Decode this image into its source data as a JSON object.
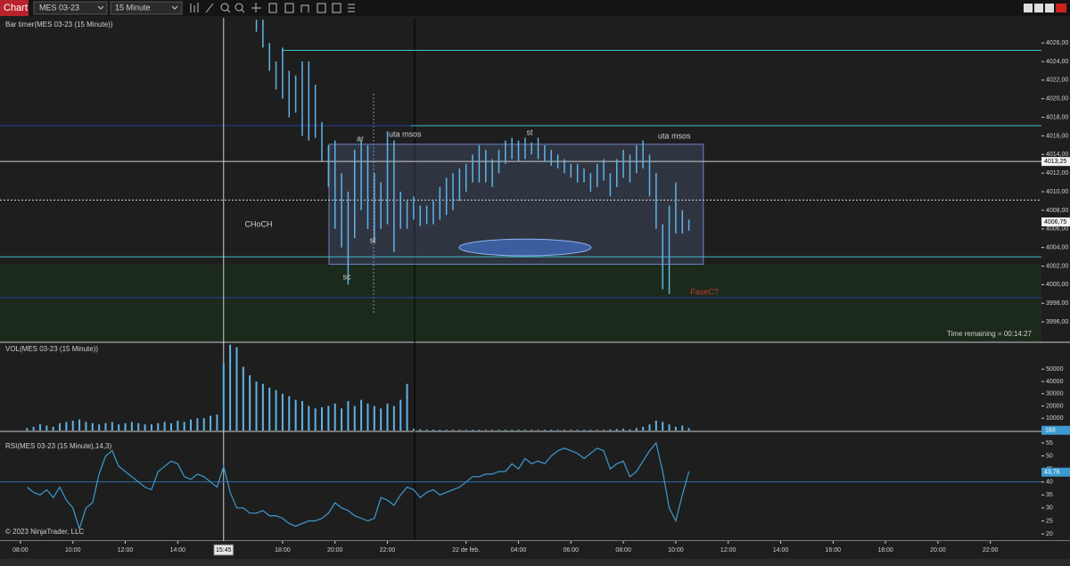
{
  "toolbar": {
    "tab": "Chart",
    "instrument": "MES 03-23",
    "interval": "15 Minute"
  },
  "copyright": "© 2023 NinjaTrader, LLC",
  "time_axis": {
    "xlim": [
      -0.78,
      38.95
    ],
    "ticks": [
      {
        "value": 0,
        "label": "08:00"
      },
      {
        "value": 2,
        "label": "10:00"
      },
      {
        "value": 4,
        "label": "12:00"
      },
      {
        "value": 6,
        "label": "14:00"
      },
      {
        "value": 10,
        "label": "18:00"
      },
      {
        "value": 12,
        "label": "20:00"
      },
      {
        "value": 14,
        "label": "22:00"
      },
      {
        "value": 17,
        "label": "22 de feb."
      },
      {
        "value": 19,
        "label": "04:00"
      },
      {
        "value": 21,
        "label": "06:00"
      },
      {
        "value": 23,
        "label": "08:00"
      },
      {
        "value": 25,
        "label": "10:00"
      },
      {
        "value": 27,
        "label": "12:00"
      },
      {
        "value": 29,
        "label": "14:00"
      },
      {
        "value": 31,
        "label": "16:00"
      },
      {
        "value": 33,
        "label": "18:00"
      },
      {
        "value": 35,
        "label": "20:00"
      },
      {
        "value": 37,
        "label": "22:00"
      }
    ],
    "crosshair": {
      "value": 7.75,
      "label": "15:45"
    },
    "bar_times": [
      0.25,
      0.5,
      0.75,
      1,
      1.25,
      1.5,
      1.75,
      2,
      2.25,
      2.5,
      2.75,
      3,
      3.25,
      3.5,
      3.75,
      4,
      4.25,
      4.5,
      4.75,
      5,
      5.25,
      5.5,
      5.75,
      6,
      6.25,
      6.5,
      6.75,
      7,
      7.25,
      7.5,
      7.75,
      8,
      8.25,
      8.5,
      8.75,
      9,
      9.25,
      9.5,
      9.75,
      10,
      10.25,
      10.5,
      10.75,
      11,
      11.25,
      11.5,
      11.75,
      12,
      12.25,
      12.5,
      12.75,
      13,
      13.25,
      13.5,
      13.75,
      14,
      14.25,
      14.5,
      14.75,
      15,
      15.25,
      15.5,
      15.75,
      16,
      16.25,
      16.5,
      16.75,
      17,
      17.25,
      17.5,
      17.75,
      18,
      18.25,
      18.5,
      18.75,
      19,
      19.25,
      19.5,
      19.75,
      20,
      20.25,
      20.5,
      20.75,
      21,
      21.25,
      21.5,
      21.75,
      22,
      22.25,
      22.5,
      22.75,
      23,
      23.25,
      23.5,
      23.75,
      24,
      24.25,
      24.5,
      24.75,
      25,
      25.25,
      25.5
    ]
  },
  "panels": {
    "price": {
      "title": "Bar timer(MES 03-23 (15 Minute))",
      "color": "#5fb3e6",
      "ylim": [
        3993.9,
        4028.7
      ],
      "yticks": [
        {
          "value": 4026,
          "label": "4026,00"
        },
        {
          "value": 4024,
          "label": "4024,00"
        },
        {
          "value": 4022,
          "label": "4022,00"
        },
        {
          "value": 4020,
          "label": "4020,00"
        },
        {
          "value": 4018,
          "label": "4018,00"
        },
        {
          "value": 4016,
          "label": "4016,00"
        },
        {
          "value": 4014,
          "label": "4014,00"
        },
        {
          "value": 4012,
          "label": "4012,00"
        },
        {
          "value": 4010,
          "label": "4010,00"
        },
        {
          "value": 4008,
          "label": "4008,00"
        },
        {
          "value": 4006,
          "label": "4006,00"
        },
        {
          "value": 4004,
          "label": "4004,00"
        },
        {
          "value": 4002,
          "label": "4002,00"
        },
        {
          "value": 4000,
          "label": "4000,00"
        },
        {
          "value": 3998,
          "label": "3998,00"
        },
        {
          "value": 3996,
          "label": "3996,00"
        }
      ],
      "time": [
        9,
        9.25,
        9.5,
        9.75,
        10,
        10.25,
        10.5,
        10.75,
        11,
        11.25,
        11.5,
        11.75,
        12,
        12.25,
        12.5,
        12.75,
        13,
        13.25,
        13.5,
        13.75,
        14,
        14.25,
        14.5,
        14.75,
        15,
        15.25,
        15.5,
        15.75,
        16,
        16.25,
        16.5,
        16.75,
        17,
        17.25,
        17.5,
        17.75,
        18,
        18.25,
        18.5,
        18.75,
        19,
        19.25,
        19.5,
        19.75,
        20,
        20.25,
        20.5,
        20.75,
        21,
        21.25,
        21.5,
        21.75,
        22,
        22.25,
        22.5,
        22.75,
        23,
        23.25,
        23.5,
        23.75,
        24,
        24.25,
        24.5,
        24.75,
        25,
        25.25,
        25.5
      ],
      "high": [
        4028.5,
        4028.5,
        4026,
        4024,
        4025.5,
        4023,
        4022.5,
        4024,
        4024,
        4021.5,
        4017.5,
        4015,
        4015.5,
        4012,
        4010,
        4014.5,
        4015.5,
        4015,
        4012,
        4011,
        4016.5,
        4015.5,
        4010,
        4009,
        4009.5,
        4008.5,
        4008.5,
        4009,
        4010.5,
        4011.5,
        4012,
        4012.5,
        4013,
        4014,
        4015,
        4014.5,
        4013.5,
        4014.5,
        4015.5,
        4015.8,
        4015.5,
        4015.8,
        4015.3,
        4015.8,
        4015,
        4014.5,
        4014,
        4013.5,
        4013,
        4013,
        4012.5,
        4012,
        4013,
        4013.5,
        4012,
        4013.5,
        4014.5,
        4014,
        4015,
        4015.5,
        4014,
        4012,
        4006.5,
        4008.5,
        4011,
        4008,
        4007
      ],
      "low": [
        4027.2,
        4025.5,
        4023,
        4021,
        4020,
        4018,
        4018.5,
        4016,
        4015.5,
        4015.8,
        4013.3,
        4010.5,
        4006,
        4004,
        4000,
        4005,
        4008,
        4006,
        4004.5,
        4006,
        4006.5,
        4003.5,
        4006,
        4006,
        4007,
        4006.3,
        4006.5,
        4006.5,
        4007,
        4007.5,
        4008,
        4009,
        4010,
        4011,
        4011,
        4011,
        4010.5,
        4012,
        4013,
        4013.5,
        4013.3,
        4013.5,
        4014,
        4013.5,
        4013.2,
        4012.8,
        4012.5,
        4012,
        4011.5,
        4011,
        4011,
        4010,
        4010.5,
        4011.2,
        4009.5,
        4010.5,
        4011.5,
        4011,
        4012,
        4012.5,
        4009.5,
        4006,
        3999.5,
        3999,
        4005.5,
        4005.5,
        4005.8
      ],
      "levels": [
        {
          "price": 4025.2,
          "time_start": 9.97,
          "color": "#3fc1c9"
        },
        {
          "price": 4017.1,
          "time_start": -0.78,
          "color": "#2a3f9e"
        },
        {
          "price": 4017.1,
          "time_start": 14.9,
          "color": "#3fc1c9"
        },
        {
          "price": 4009.1,
          "time_start": -0.78,
          "color": "#d0d0d0",
          "dashed": true
        },
        {
          "price": 4003.0,
          "time_start": -0.78,
          "color": "#3fc1c9"
        },
        {
          "price": 3998.6,
          "time_start": -0.78,
          "color": "#2a3f9e"
        }
      ],
      "crosshair_price": {
        "value": 4013.25,
        "label": "4013,25"
      },
      "last_price": {
        "value": 4006.75,
        "label": "4006,75"
      },
      "range_box": {
        "time_start": 11.77,
        "time_end": 26.05,
        "top": 4015.1,
        "bottom": 4002.2
      },
      "ellipse": {
        "time_start": 16.73,
        "time_end": 21.77,
        "top": 4004.9,
        "bottom": 4003.1
      },
      "zone": {
        "top": 4002.2,
        "color": "#1c2a1c"
      },
      "annotations": [
        {
          "text": "ar",
          "color": "#cfcfcf"
        },
        {
          "text": "uta msos",
          "color": "#cfcfcf"
        },
        {
          "text": "st",
          "color": "#cfcfcf"
        },
        {
          "text": "uta msos",
          "color": "#cfcfcf"
        },
        {
          "text": "st",
          "color": "#cfcfcf"
        },
        {
          "text": "sc",
          "color": "#cfcfcf"
        },
        {
          "text": "CHoCH",
          "color": "#cfcfcf"
        },
        {
          "text": "FaseC?",
          "color": "#c0392b"
        }
      ],
      "time_remaining": "Time remaining = 00:14:27"
    },
    "volume": {
      "title": "VOL(MES 03-23 (15 Minute))",
      "color": "#5fb3e6",
      "ylim": [
        0,
        70500
      ],
      "yticks": [
        10000,
        20000,
        30000,
        40000,
        50000
      ],
      "last": 183,
      "values": [
        2000,
        3000,
        5000,
        4000,
        3000,
        6000,
        7000,
        8000,
        9000,
        7000,
        6000,
        5000,
        6000,
        7000,
        5000,
        6000,
        7000,
        6000,
        5000,
        5000,
        6000,
        7000,
        6000,
        8000,
        7000,
        9000,
        10000,
        10000,
        12000,
        13000,
        55000,
        70000,
        68000,
        52000,
        45000,
        40000,
        38000,
        35000,
        33000,
        30000,
        28000,
        25000,
        24000,
        20000,
        18000,
        19000,
        20000,
        22000,
        18000,
        24000,
        20000,
        25000,
        22000,
        20000,
        18000,
        22000,
        20000,
        25000,
        38000,
        1500,
        1000,
        800,
        700,
        600,
        600,
        600,
        600,
        600,
        600,
        600,
        600,
        600,
        600,
        600,
        600,
        600,
        600,
        600,
        600,
        600,
        600,
        600,
        600,
        600,
        600,
        600,
        600,
        600,
        600,
        1000,
        1200,
        1500,
        1000,
        2000,
        3000,
        5000,
        8000,
        7000,
        5000,
        3000,
        4000,
        2000
      ]
    },
    "rsi": {
      "title": "RSI(MES 03-23 (15 Minute),14,3)",
      "color": "#3d9ad1",
      "ylim": [
        17.6,
        56
      ],
      "yticks": [
        20,
        25,
        30,
        35,
        40,
        45,
        50,
        55
      ],
      "level": 40,
      "last": {
        "value": 43.76,
        "label": "43,76"
      },
      "values": [
        38,
        36,
        35,
        37,
        34,
        38,
        33,
        30,
        22,
        30,
        32,
        43,
        50,
        52,
        46,
        44,
        42,
        40,
        38,
        37,
        44,
        46,
        48,
        47,
        42,
        41,
        43,
        42,
        40,
        38,
        46,
        36,
        30,
        30,
        28,
        28,
        29,
        27,
        27,
        26,
        24,
        23,
        24,
        25,
        25,
        26,
        28,
        32,
        30,
        29,
        27,
        26,
        25,
        26,
        34,
        33,
        31,
        35,
        38,
        37,
        34,
        36,
        37,
        35,
        36,
        37,
        38,
        40,
        42,
        42,
        43,
        43,
        44,
        44,
        47,
        45,
        49,
        47,
        48,
        47,
        50,
        52,
        53,
        52,
        51,
        49,
        51,
        53,
        52,
        45,
        47,
        48,
        42,
        44,
        48,
        52,
        55,
        44,
        30,
        25,
        35,
        44
      ]
    }
  }
}
